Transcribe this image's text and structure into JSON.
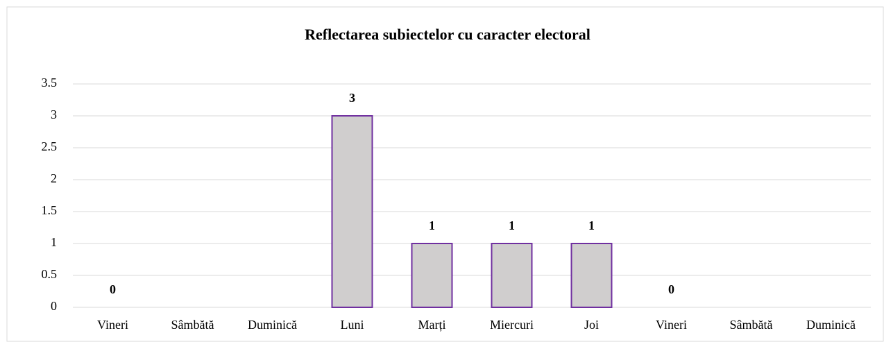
{
  "chart_data": {
    "type": "bar",
    "title": "Reflectarea subiectelor cu caracter electoral",
    "categories": [
      "Vineri",
      "Sâmbătă",
      "Duminică",
      "Luni",
      "Marți",
      "Miercuri",
      "Joi",
      "Vineri",
      "Sâmbătă",
      "Duminică"
    ],
    "values": [
      0,
      null,
      null,
      3,
      1,
      1,
      1,
      0,
      null,
      null
    ],
    "color": "#d0cece",
    "edge_color": "#7030a0",
    "ylim": [
      0,
      3.5
    ],
    "yticks": [
      0,
      0.5,
      1,
      1.5,
      2,
      2.5,
      3,
      3.5
    ],
    "grid": true
  }
}
